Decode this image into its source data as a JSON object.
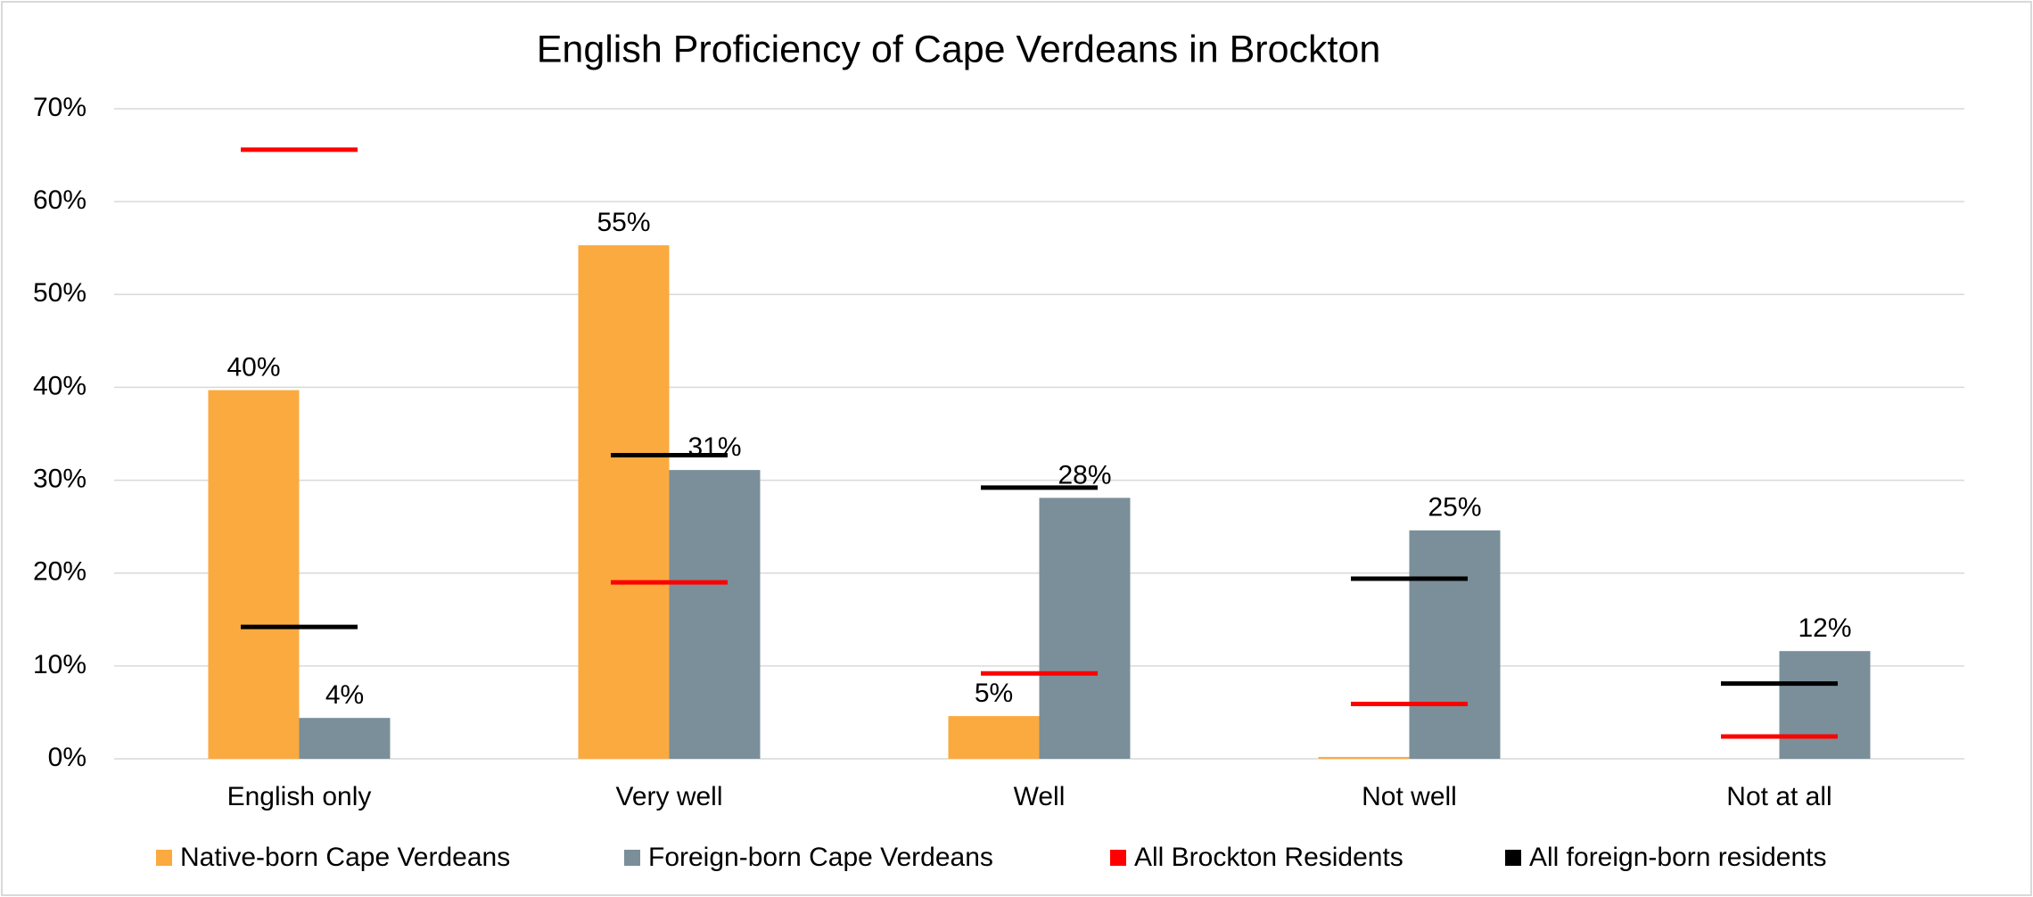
{
  "chart_data": {
    "type": "bar",
    "title": "English Proficiency of Cape Verdeans in Brockton",
    "categories": [
      "English only",
      "Very well",
      "Well",
      "Not well",
      "Not at all"
    ],
    "series": [
      {
        "name": "Native-born Cape Verdeans",
        "color": "#FBAA3F",
        "style": "bar",
        "values": [
          39.7,
          55.3,
          4.6,
          0.2,
          0
        ],
        "value_labels": [
          "40%",
          "55%",
          "5%",
          null,
          null
        ]
      },
      {
        "name": "Foreign-born Cape Verdeans",
        "color": "#7A8F99",
        "style": "bar",
        "values": [
          4.4,
          31.1,
          28.1,
          24.6,
          11.6
        ],
        "value_labels": [
          "4%",
          "31%",
          "28%",
          "25%",
          "12%"
        ]
      },
      {
        "name": "All Brockton Residents",
        "color": "#FF0000",
        "style": "marker",
        "values": [
          65.6,
          19.0,
          9.2,
          5.9,
          2.4
        ]
      },
      {
        "name": "All foreign-born residents",
        "color": "#000000",
        "style": "marker",
        "values": [
          14.2,
          32.7,
          29.2,
          19.4,
          8.1
        ]
      }
    ],
    "ylim": [
      0,
      70
    ],
    "yticks": [
      {
        "value": 0,
        "label": "0%"
      },
      {
        "value": 10,
        "label": "10%"
      },
      {
        "value": 20,
        "label": "20%"
      },
      {
        "value": 30,
        "label": "30%"
      },
      {
        "value": 40,
        "label": "40%"
      },
      {
        "value": 50,
        "label": "50%"
      },
      {
        "value": 60,
        "label": "60%"
      },
      {
        "value": 70,
        "label": "70%"
      }
    ],
    "grid": true,
    "legend": "bottom"
  }
}
